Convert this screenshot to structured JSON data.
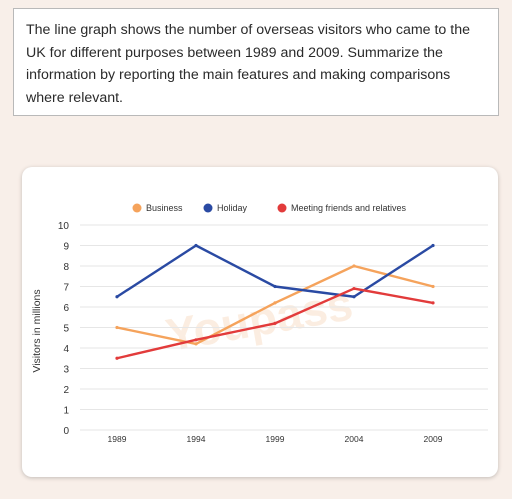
{
  "prompt": {
    "text": "The line graph shows the number of overseas visitors who came to the UK for different purposes between 1989 and 2009. Summarize the information by reporting the main features and making comparisons where relevant."
  },
  "watermark": {
    "text": "Youpass"
  },
  "chart_data": {
    "type": "line",
    "title": "",
    "xlabel": "",
    "ylabel": "Visitors in millions",
    "categories": [
      "1989",
      "1994",
      "1999",
      "2004",
      "2009"
    ],
    "yticks": [
      "0",
      "1",
      "2",
      "3",
      "4",
      "5",
      "6",
      "7",
      "8",
      "9",
      "10"
    ],
    "ylim": [
      0,
      10
    ],
    "grid": true,
    "legend_position": "top",
    "series": [
      {
        "name": "Business",
        "color": "#f5a35c",
        "values": [
          5.0,
          4.2,
          6.2,
          8.0,
          7.0
        ]
      },
      {
        "name": "Holiday",
        "color": "#2a4aa3",
        "values": [
          6.5,
          9.0,
          7.0,
          6.5,
          9.0
        ]
      },
      {
        "name": "Meeting friends and relatives",
        "color": "#e23b3b",
        "values": [
          3.5,
          4.4,
          5.2,
          6.9,
          6.2
        ]
      }
    ]
  }
}
